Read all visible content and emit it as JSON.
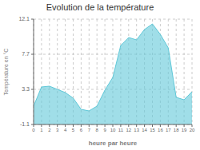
{
  "chart_data": {
    "type": "area",
    "title": "Evolution de la température",
    "xlabel": "heure par heure",
    "ylabel": "Température en °C",
    "x": [
      0,
      1,
      2,
      3,
      4,
      5,
      6,
      7,
      8,
      9,
      10,
      11,
      12,
      13,
      14,
      15,
      16,
      17,
      18,
      19,
      20
    ],
    "values": [
      1.2,
      3.6,
      3.7,
      3.3,
      2.9,
      2.2,
      0.8,
      0.6,
      1.2,
      3.2,
      4.8,
      8.8,
      9.8,
      9.5,
      10.8,
      11.5,
      10.2,
      8.5,
      2.3,
      2.0,
      3.0
    ],
    "color": "#60c8d8",
    "xlim": [
      0,
      20
    ],
    "xticks": [
      0,
      1,
      2,
      3,
      4,
      5,
      6,
      7,
      8,
      9,
      10,
      11,
      12,
      13,
      14,
      15,
      16,
      17,
      18,
      19,
      20
    ],
    "ylim": [
      -1.1,
      12.1
    ],
    "yticks": [
      -1.1,
      3.3,
      7.7,
      12.1
    ],
    "grid": true
  }
}
